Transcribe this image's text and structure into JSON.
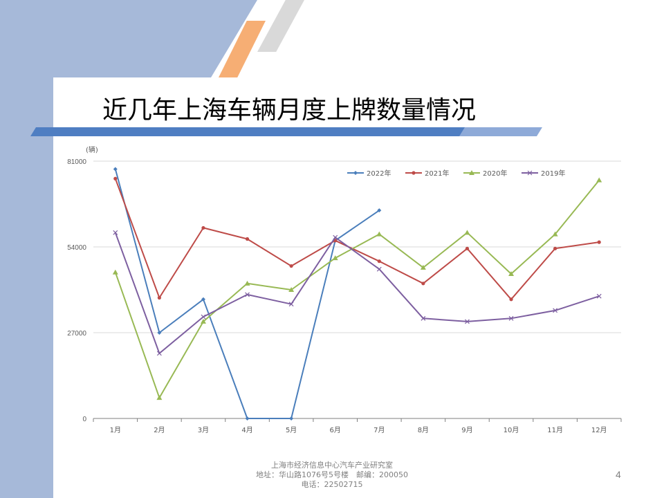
{
  "slide": {
    "title": "近几年上海车辆月度上牌数量情况",
    "page_number": "4",
    "footer": {
      "line1": "上海市经济信息中心汽车产业研究室",
      "line2": "地址：华山路1076号5号楼　邮编：200050",
      "line3": "电话：22502715"
    }
  },
  "colors": {
    "band": "#a6b9d9",
    "title_bar": "#4f7ec2",
    "title_bar_light": "#8eaad8",
    "stripe_orange": "#f6ae74",
    "stripe_gray": "#d9d9d9"
  },
  "chart_data": {
    "type": "line",
    "unit_label": "(辆)",
    "categories": [
      "1月",
      "2月",
      "3月",
      "4月",
      "5月",
      "6月",
      "7月",
      "8月",
      "9月",
      "10月",
      "11月",
      "12月"
    ],
    "ylim": [
      0,
      81000
    ],
    "yticks": [
      0,
      27000,
      54000,
      81000
    ],
    "ytick_labels": [
      "0",
      "27000",
      "54000",
      "81000"
    ],
    "grid": true,
    "legend_position": "top",
    "series": [
      {
        "name": "2022年",
        "color": "#4a7ebb",
        "marker": "diamond",
        "values": [
          78500,
          27000,
          37500,
          0,
          0,
          56000,
          65500,
          null,
          null,
          null,
          null,
          null
        ]
      },
      {
        "name": "2021年",
        "color": "#be4b48",
        "marker": "circle",
        "values": [
          75500,
          38000,
          60000,
          56500,
          48000,
          56000,
          49500,
          42500,
          53500,
          37500,
          53500,
          55500
        ]
      },
      {
        "name": "2020年",
        "color": "#98b954",
        "marker": "triangle",
        "values": [
          46000,
          6500,
          30500,
          42500,
          40500,
          50500,
          58000,
          47500,
          58500,
          45500,
          58000,
          75000
        ]
      },
      {
        "name": "2019年",
        "color": "#7d5fa0",
        "marker": "x",
        "values": [
          58500,
          20500,
          32000,
          39000,
          36000,
          57000,
          47000,
          31500,
          30500,
          31500,
          34000,
          38500
        ]
      }
    ]
  }
}
